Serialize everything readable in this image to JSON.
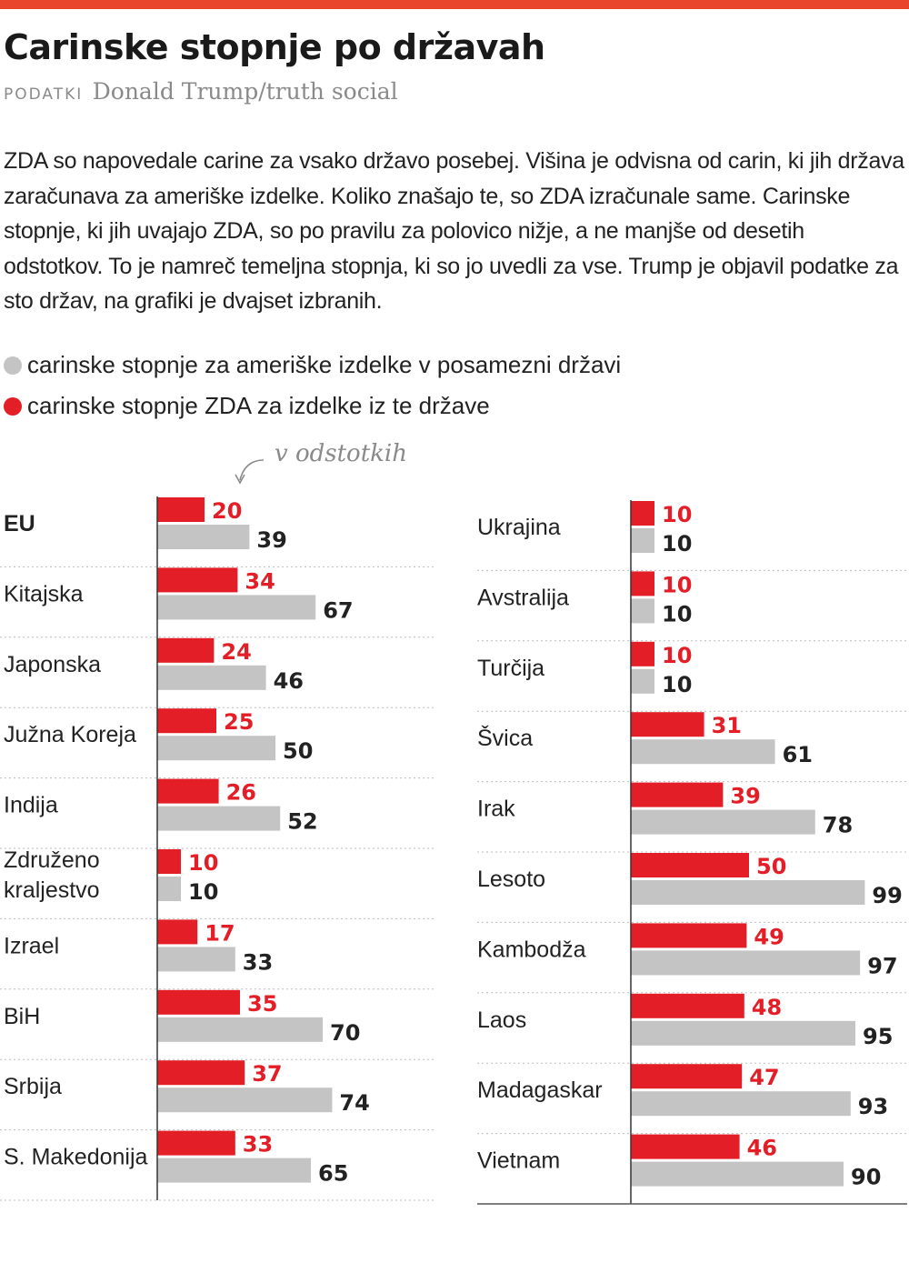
{
  "header": {
    "title": "Carinske stopnje po državah",
    "source_label": "PODATKI",
    "source_value": "Donald Trump/truth social"
  },
  "intro": "ZDA so napovedale carine za vsako državo posebej. Višina je odvisna od carin, ki jih država zaračunava za ameriške izdelke. Koliko znašajo te, so ZDA izračunale same. Carinske stopnje, ki jih uvajajo ZDA, so po pravilu za polovico nižje, a ne manjše od desetih odstotkov. To je namreč temeljna stopnja, ki so jo uvedli za vse. Trump je objavil podatke za sto držav, na grafiki je dvajset izbranih.",
  "legend": {
    "grey": "carinske stopnje za ameriške izdelke v posamezni državi",
    "red": "carinske stopnje ZDA za izdelke iz te države"
  },
  "unit_note": "v odstotkih",
  "colors": {
    "red": "#e31e26",
    "grey": "#c4c4c4",
    "red_text": "#e31e26",
    "grey_text": "#222222",
    "accent": "#e8452c"
  },
  "chart_data": {
    "type": "bar",
    "orientation": "horizontal",
    "unit": "v odstotkih",
    "series": [
      {
        "name": "carinske stopnje ZDA za izdelke iz te države",
        "color": "#e31e26"
      },
      {
        "name": "carinske stopnje za ameriške izdelke v posamezni državi",
        "color": "#c4c4c4"
      }
    ],
    "panels": [
      {
        "categories": [
          {
            "label": "EU",
            "lines": [
              "EU"
            ],
            "bold": true,
            "red": 20,
            "grey": 39
          },
          {
            "label": "Kitajska",
            "lines": [
              "Kitajska"
            ],
            "red": 34,
            "grey": 67
          },
          {
            "label": "Japonska",
            "lines": [
              "Japonska"
            ],
            "red": 24,
            "grey": 46
          },
          {
            "label": "Južna Koreja",
            "lines": [
              "Južna Koreja"
            ],
            "red": 25,
            "grey": 50
          },
          {
            "label": "Indija",
            "lines": [
              "Indija"
            ],
            "red": 26,
            "grey": 52
          },
          {
            "label": "Združeno kraljestvo",
            "lines": [
              "Združeno",
              "kraljestvo"
            ],
            "red": 10,
            "grey": 10
          },
          {
            "label": "Izrael",
            "lines": [
              "Izrael"
            ],
            "red": 17,
            "grey": 33
          },
          {
            "label": "BiH",
            "lines": [
              "BiH"
            ],
            "red": 35,
            "grey": 70
          },
          {
            "label": "Srbija",
            "lines": [
              "Srbija"
            ],
            "red": 37,
            "grey": 74
          },
          {
            "label": "S. Makedonija",
            "lines": [
              "S. Makedonija"
            ],
            "red": 33,
            "grey": 65
          }
        ]
      },
      {
        "categories": [
          {
            "label": "Ukrajina",
            "lines": [
              "Ukrajina"
            ],
            "red": 10,
            "grey": 10
          },
          {
            "label": "Avstralija",
            "lines": [
              "Avstralija"
            ],
            "red": 10,
            "grey": 10
          },
          {
            "label": "Turčija",
            "lines": [
              "Turčija"
            ],
            "red": 10,
            "grey": 10
          },
          {
            "label": "Švica",
            "lines": [
              "Švica"
            ],
            "red": 31,
            "grey": 61
          },
          {
            "label": "Irak",
            "lines": [
              "Irak"
            ],
            "red": 39,
            "grey": 78
          },
          {
            "label": "Lesoto",
            "lines": [
              "Lesoto"
            ],
            "red": 50,
            "grey": 99
          },
          {
            "label": "Kambodža",
            "lines": [
              "Kambodža"
            ],
            "red": 49,
            "grey": 97
          },
          {
            "label": "Laos",
            "lines": [
              "Laos"
            ],
            "red": 48,
            "grey": 95
          },
          {
            "label": "Madagaskar",
            "lines": [
              "Madagaskar"
            ],
            "red": 47,
            "grey": 93
          },
          {
            "label": "Vietnam",
            "lines": [
              "Vietnam"
            ],
            "red": 46,
            "grey": 90
          }
        ]
      }
    ]
  }
}
